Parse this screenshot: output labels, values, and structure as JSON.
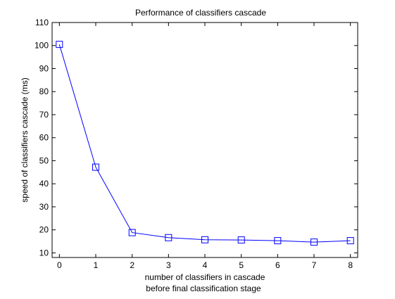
{
  "chart_data": {
    "type": "line",
    "title": "Performance of classifiers cascade",
    "xlabel": "number of classifiers in cascade",
    "xlabel2": "before final classification stage",
    "ylabel": "speed of classifiers cascade (ms)",
    "xlim": [
      -0.2,
      8.2
    ],
    "ylim": [
      8,
      110
    ],
    "xticks": [
      0,
      1,
      2,
      3,
      4,
      5,
      6,
      7,
      8
    ],
    "yticks": [
      10,
      20,
      30,
      40,
      50,
      60,
      70,
      80,
      90,
      100,
      110
    ],
    "grid": false,
    "legend": "none",
    "series": [
      {
        "x": [
          0,
          1,
          2,
          3,
          4,
          5,
          6,
          7,
          8
        ],
        "values": [
          100.5,
          47.2,
          18.8,
          16.6,
          15.7,
          15.6,
          15.3,
          14.7,
          15.3
        ],
        "color": "#0000ff",
        "marker": "square"
      }
    ]
  }
}
